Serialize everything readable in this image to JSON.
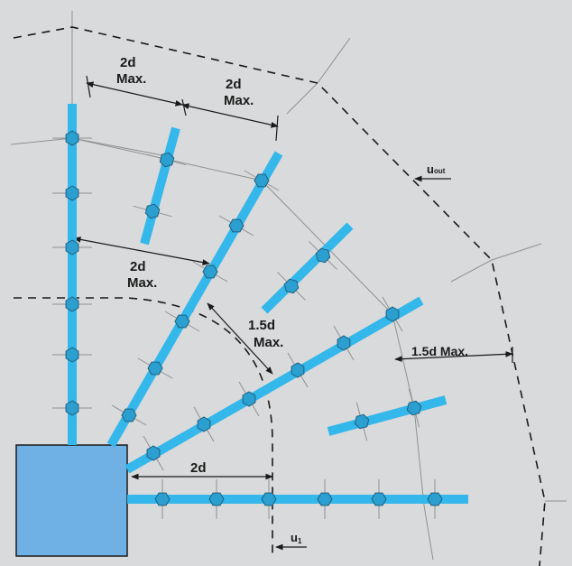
{
  "labels": {
    "spacing_top_left": [
      "2d",
      "Max."
    ],
    "spacing_top_right": [
      "2d",
      "Max."
    ],
    "spacing_middle": [
      "2d",
      "Max."
    ],
    "spacing_first_row": [
      "1.5d",
      "Max."
    ],
    "spacing_right": "1.5d Max.",
    "spacing_bottom": "2d",
    "u_out_main": "u",
    "u_out_sub": "out",
    "u1_main": "u",
    "u1_sub": "1"
  },
  "colors": {
    "background": "#d9dadb",
    "column": "#6fb1e4",
    "stud_rail": "#34b7ea",
    "stud_head": "#2a9fd0",
    "perimeter_line": "#1a1a1a",
    "construction_line": "#8f9091",
    "dimension_line": "#1a1a1a"
  }
}
